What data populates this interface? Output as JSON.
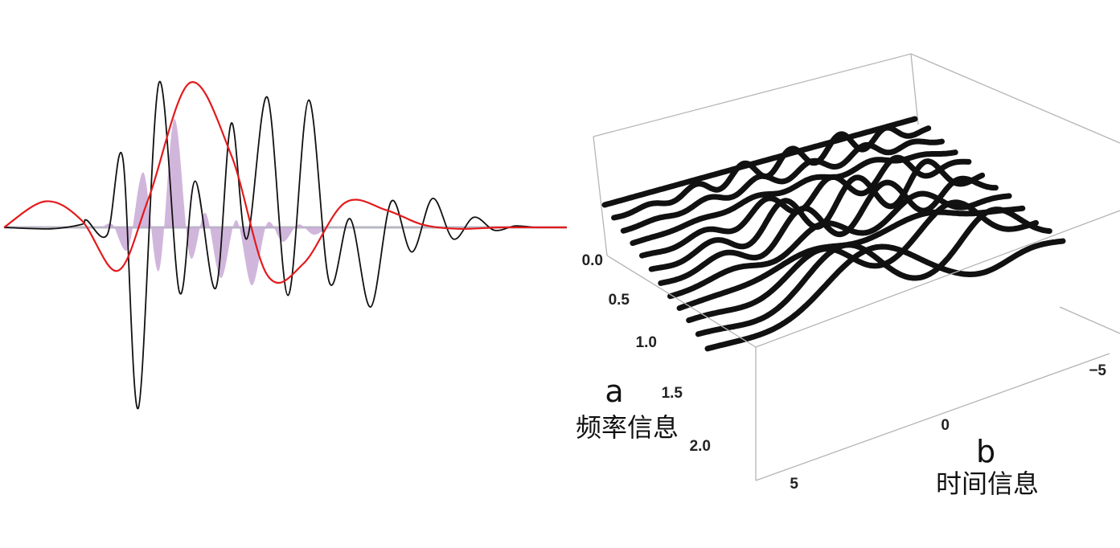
{
  "colors": {
    "signal": "#111111",
    "wavelet": "#e31a1c",
    "product": "#c9a9d6",
    "baseline": "#b8b8c4",
    "ridge": "#111111",
    "box": "#b5b5b5"
  },
  "chart_data": [
    {
      "type": "line",
      "title": "",
      "xlabel": "",
      "ylabel": "",
      "grid": false,
      "series": [
        {
          "role": "signal",
          "x": [
            -5.5,
            -4.6,
            -4.0,
            -3.9,
            -3.5,
            -3.2,
            -2.9,
            -2.5,
            -2.1,
            -1.8,
            -1.4,
            -1.1,
            -0.8,
            -0.4,
            0.0,
            0.4,
            0.8,
            1.2,
            1.6,
            2.0,
            2.4,
            2.8,
            3.2,
            3.6,
            4.0,
            4.4,
            4.8,
            5.4
          ],
          "y": [
            0.0,
            -0.01,
            0.02,
            0.05,
            -0.05,
            0.48,
            -1.25,
            1.0,
            -0.45,
            0.32,
            -0.42,
            0.72,
            -0.08,
            0.9,
            -0.47,
            0.88,
            -0.38,
            0.06,
            -0.55,
            0.18,
            -0.17,
            0.2,
            -0.08,
            0.07,
            -0.02,
            0.01,
            0.0,
            0.0
          ]
        },
        {
          "role": "wavelet",
          "x": [
            -5.5,
            -4.7,
            -4.0,
            -3.3,
            -2.7,
            -1.9,
            -1.1,
            -0.4,
            0.3,
            1.1,
            1.9,
            2.6,
            3.3,
            4.1,
            4.9,
            5.4
          ],
          "y": [
            0.0,
            0.18,
            0.05,
            -0.3,
            0.2,
            1.0,
            0.5,
            -0.33,
            -0.25,
            0.17,
            0.12,
            0.02,
            -0.01,
            0.0,
            0.0,
            0.0
          ]
        },
        {
          "role": "product",
          "x": [
            -3.6,
            -3.4,
            -3.1,
            -2.8,
            -2.5,
            -2.2,
            -1.9,
            -1.6,
            -1.3,
            -1.0,
            -0.7,
            -0.4,
            -0.1,
            0.2,
            0.5,
            0.8,
            1.1,
            1.4
          ],
          "y": [
            0.0,
            0.02,
            -0.15,
            0.38,
            -0.3,
            0.75,
            -0.2,
            0.1,
            -0.35,
            0.05,
            -0.4,
            0.03,
            -0.1,
            0.02,
            -0.05,
            0.0,
            0.0,
            0.0
          ]
        }
      ]
    },
    {
      "type": "surface",
      "title": "",
      "freq_axis": {
        "label": "频率信息",
        "letter": "a",
        "ticks": [
          "0.0",
          "0.5",
          "1.0",
          "1.5",
          "2.0"
        ],
        "range": [
          0,
          2
        ]
      },
      "time_axis": {
        "label": "时间信息",
        "letter": "b",
        "ticks": [
          "5",
          "0",
          "−5"
        ],
        "range": [
          -6,
          6
        ]
      },
      "ridges": 12
    }
  ]
}
